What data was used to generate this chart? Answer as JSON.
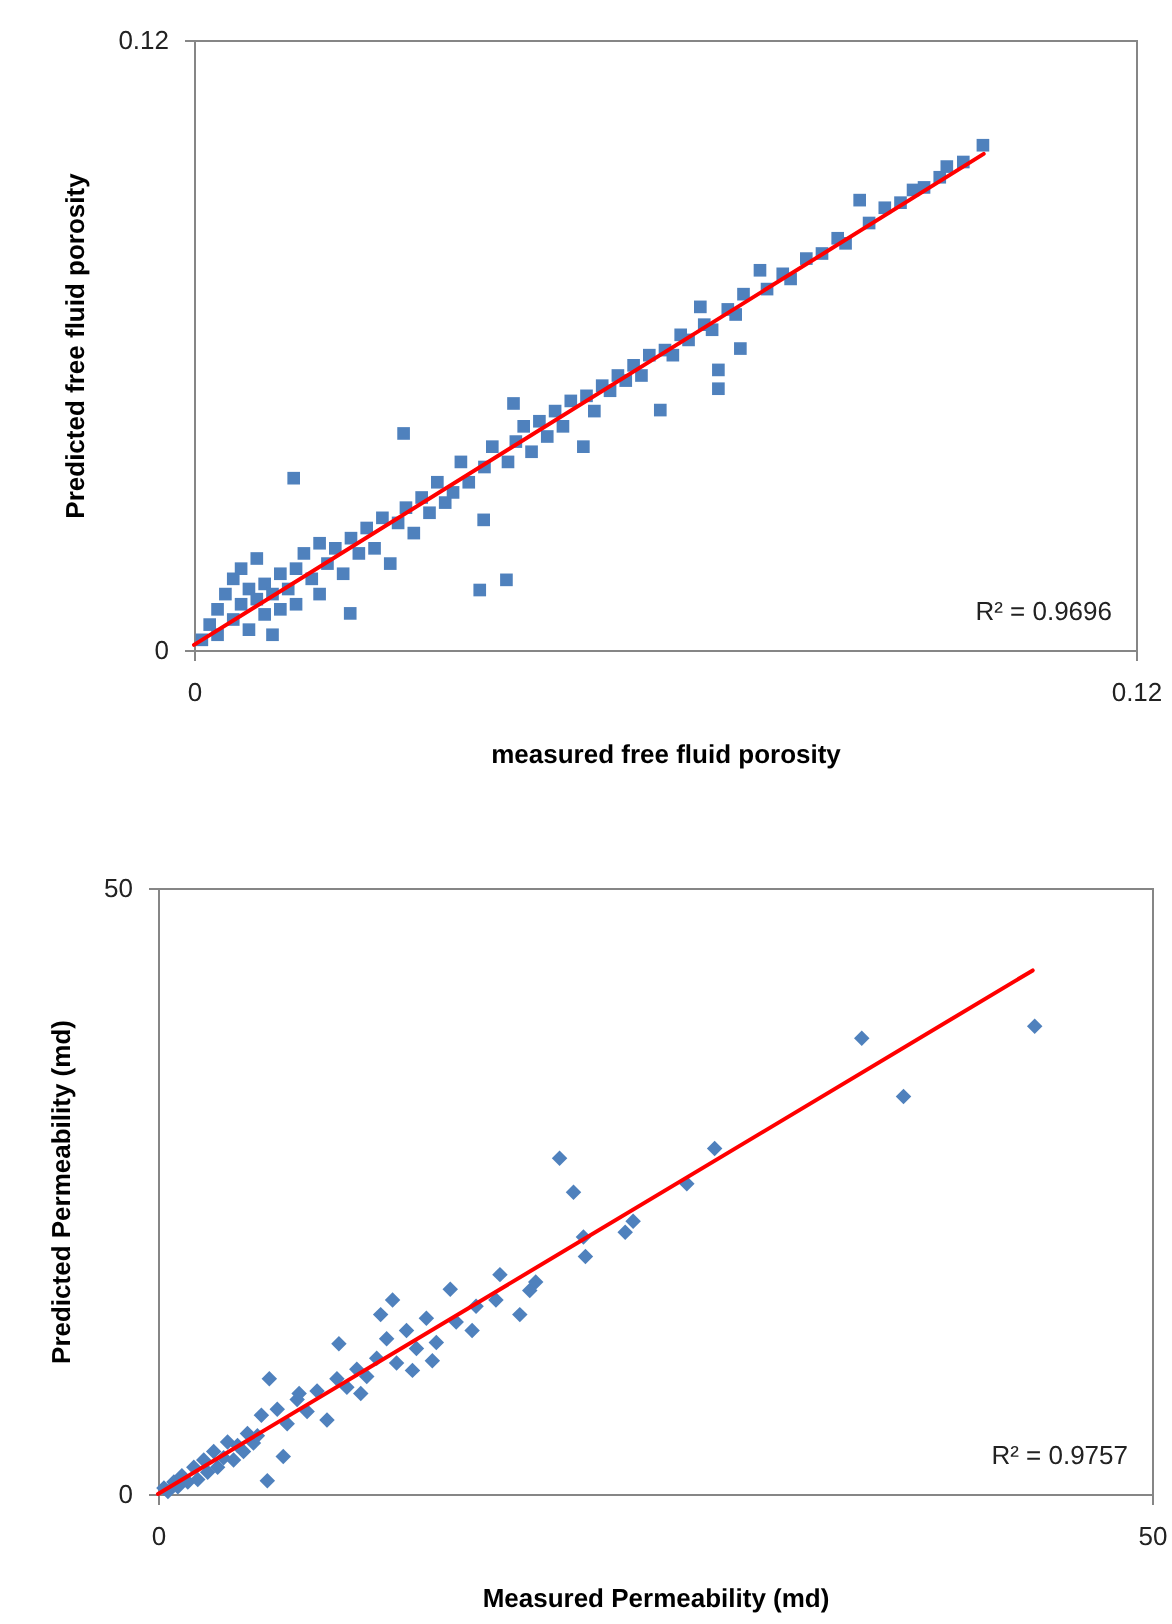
{
  "chart_data": [
    {
      "type": "scatter",
      "xlabel": "measured free fluid porosity",
      "ylabel": "Predicted free fluid porosity",
      "xlim": [
        0,
        0.12
      ],
      "ylim": [
        0,
        0.12
      ],
      "xticks": [
        0,
        0.12
      ],
      "yticks": [
        0,
        0.12
      ],
      "marker": "square",
      "annotations": [
        "R² = 0.9696"
      ],
      "series": [
        {
          "type": "scatter",
          "color": "#4f81bd",
          "x": [
            0.001,
            0.002,
            0.003,
            0.003,
            0.004,
            0.005,
            0.005,
            0.006,
            0.006,
            0.007,
            0.007,
            0.008,
            0.008,
            0.009,
            0.009,
            0.01,
            0.01,
            0.011,
            0.011,
            0.012,
            0.0127,
            0.013,
            0.013,
            0.014,
            0.015,
            0.016,
            0.016,
            0.017,
            0.018,
            0.019,
            0.0199,
            0.02,
            0.021,
            0.022,
            0.023,
            0.024,
            0.025,
            0.026,
            0.0267,
            0.027,
            0.028,
            0.029,
            0.03,
            0.031,
            0.032,
            0.033,
            0.034,
            0.035,
            0.0364,
            0.0369,
            0.037,
            0.038,
            0.0398,
            0.04,
            0.0407,
            0.041,
            0.042,
            0.043,
            0.044,
            0.045,
            0.046,
            0.047,
            0.048,
            0.0496,
            0.05,
            0.051,
            0.052,
            0.053,
            0.054,
            0.055,
            0.056,
            0.057,
            0.058,
            0.0594,
            0.06,
            0.061,
            0.062,
            0.063,
            0.0645,
            0.065,
            0.066,
            0.0668,
            0.0668,
            0.068,
            0.069,
            0.0696,
            0.07,
            0.0721,
            0.073,
            0.075,
            0.076,
            0.078,
            0.08,
            0.082,
            0.083,
            0.0848,
            0.086,
            0.088,
            0.09,
            0.0916,
            0.093,
            0.095,
            0.0959,
            0.098,
            0.1005
          ],
          "values": [
            0.002,
            0.005,
            0.003,
            0.008,
            0.011,
            0.006,
            0.014,
            0.009,
            0.016,
            0.012,
            0.004,
            0.01,
            0.018,
            0.007,
            0.013,
            0.011,
            0.003,
            0.015,
            0.008,
            0.012,
            0.0338,
            0.016,
            0.009,
            0.019,
            0.014,
            0.021,
            0.011,
            0.017,
            0.02,
            0.015,
            0.0072,
            0.022,
            0.019,
            0.024,
            0.02,
            0.026,
            0.017,
            0.025,
            0.0426,
            0.028,
            0.023,
            0.03,
            0.027,
            0.033,
            0.029,
            0.031,
            0.037,
            0.033,
            0.0118,
            0.0256,
            0.036,
            0.04,
            0.0138,
            0.037,
            0.0485,
            0.041,
            0.044,
            0.039,
            0.045,
            0.042,
            0.047,
            0.044,
            0.049,
            0.04,
            0.05,
            0.047,
            0.052,
            0.051,
            0.054,
            0.053,
            0.056,
            0.054,
            0.058,
            0.0472,
            0.059,
            0.058,
            0.062,
            0.061,
            0.0675,
            0.064,
            0.063,
            0.0551,
            0.0514,
            0.067,
            0.066,
            0.0593,
            0.07,
            0.0747,
            0.071,
            0.074,
            0.073,
            0.077,
            0.078,
            0.081,
            0.08,
            0.0885,
            0.084,
            0.087,
            0.088,
            0.0905,
            0.091,
            0.093,
            0.0951,
            0.096,
            0.0993
          ]
        },
        {
          "type": "line",
          "color": "#ff0000",
          "marker": "none",
          "x": [
            0,
            0.1006
          ],
          "values": [
            0.001,
            0.0976
          ]
        }
      ]
    },
    {
      "type": "scatter",
      "xlabel": "Measured Permeability (md)",
      "ylabel": "Predicted Permeability (md)",
      "xlim": [
        0,
        50
      ],
      "ylim": [
        0,
        50
      ],
      "xticks": [
        0,
        50
      ],
      "yticks": [
        0,
        50
      ],
      "marker": "diamond",
      "annotations": [
        "R² = 0.9757"
      ],
      "series": [
        {
          "type": "scatter",
          "color": "#4f81bd",
          "x": [
            0.3,
            0.5,
            0.8,
            1,
            1.2,
            1.5,
            1.8,
            2,
            2.3,
            2.5,
            2.8,
            3,
            3.3,
            3.5,
            3.8,
            4,
            4.3,
            4.5,
            4.8,
            5,
            5.2,
            5.5,
            5.6,
            6,
            6.3,
            6.5,
            7,
            7.1,
            7.5,
            8,
            8.5,
            9,
            9.1,
            9.5,
            10,
            10.2,
            10.5,
            11,
            11.2,
            11.5,
            11.8,
            12,
            12.5,
            12.8,
            13,
            13.5,
            13.8,
            14,
            14.7,
            15,
            15.8,
            16,
            17,
            17.2,
            18.2,
            18.7,
            19,
            20.2,
            20.9,
            21.4,
            21.5,
            23.5,
            23.9,
            26.6,
            28.0,
            35.4,
            37.5,
            44.1
          ],
          "values": [
            0.5,
            0.2,
            1.0,
            0.6,
            1.5,
            1.0,
            2.2,
            1.2,
            2.8,
            1.8,
            3.5,
            2.2,
            3.0,
            4.3,
            2.8,
            4.0,
            3.5,
            5.0,
            4.2,
            4.8,
            6.5,
            1.1,
            9.5,
            7.0,
            3.1,
            5.8,
            7.8,
            8.3,
            6.8,
            8.5,
            6.1,
            9.5,
            12.4,
            8.8,
            10.3,
            8.3,
            9.7,
            11.2,
            14.8,
            12.8,
            16.0,
            10.8,
            13.5,
            10.2,
            12.0,
            14.5,
            11.0,
            12.5,
            16.9,
            14.2,
            13.5,
            15.5,
            16.0,
            18.1,
            14.8,
            16.8,
            17.5,
            27.7,
            24.9,
            21.2,
            19.6,
            21.6,
            22.5,
            25.6,
            28.5,
            37.6,
            32.8,
            38.6
          ]
        },
        {
          "type": "line",
          "color": "#ff0000",
          "marker": "none",
          "x": [
            0,
            44
          ],
          "values": [
            0,
            43.2
          ]
        }
      ]
    }
  ]
}
